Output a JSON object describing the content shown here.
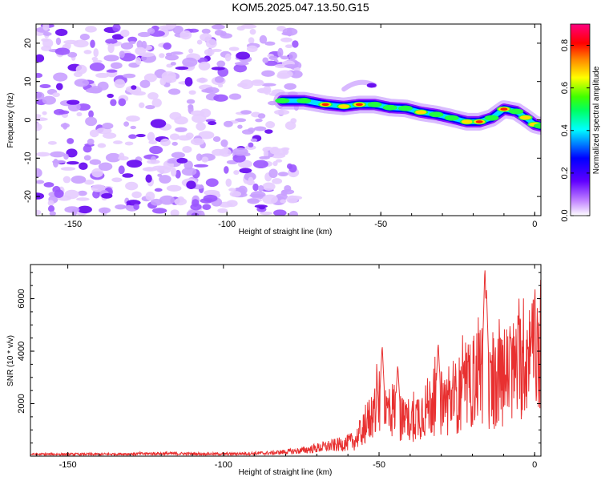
{
  "figure": {
    "title": "KOM5.2025.047.13.50.G15"
  },
  "chart_data": [
    {
      "type": "heatmap",
      "name": "spectrogram",
      "xlabel": "Height of straight line (km)",
      "ylabel": "Frequency (Hz)",
      "xlim": [
        -162,
        2
      ],
      "ylim": [
        -25,
        25
      ],
      "x_ticks": [
        -150,
        -100,
        -50,
        0
      ],
      "y_ticks": [
        -20,
        -10,
        0,
        10,
        20
      ],
      "colorbar": {
        "label": "Normalized spectral amplitude",
        "range": [
          0,
          0.9
        ],
        "ticks": [
          0.0,
          0.2,
          0.4,
          0.6,
          0.8
        ],
        "colormap": [
          "#ffffff",
          "#8000ff",
          "#0000ff",
          "#00ffff",
          "#00ff00",
          "#ffff00",
          "#ff0000",
          "#ff0080"
        ]
      },
      "noise_region_x": [
        -162,
        -80
      ],
      "signal_track": {
        "x": [
          -82,
          -75,
          -68,
          -62,
          -57,
          -52,
          -47,
          -42,
          -37,
          -32,
          -27,
          -22,
          -18,
          -14,
          -10,
          -6,
          -3,
          0,
          2
        ],
        "freq": [
          5,
          5,
          4,
          3.5,
          4,
          4,
          3.2,
          3,
          2,
          1.4,
          0.5,
          -0.5,
          -0.5,
          0.5,
          2.8,
          2.2,
          0.6,
          -1.2,
          -1.6
        ],
        "amplitude": [
          0.5,
          0.55,
          0.78,
          0.7,
          0.72,
          0.45,
          0.6,
          0.55,
          0.62,
          0.6,
          0.58,
          0.65,
          0.8,
          0.6,
          0.82,
          0.55,
          0.7,
          0.65,
          0.6
        ]
      }
    },
    {
      "type": "line",
      "name": "snr",
      "xlabel": "Height of straight line (km)",
      "ylabel": "SNR (10 * v/v)",
      "xlim": [
        -162,
        2
      ],
      "ylim": [
        0,
        7300
      ],
      "x_ticks": [
        -150,
        -100,
        -50,
        0
      ],
      "y_ticks": [
        2000,
        4000,
        6000
      ],
      "color": "#e83030",
      "envelope": {
        "x": [
          -162,
          -140,
          -120,
          -100,
          -85,
          -75,
          -68,
          -62,
          -58,
          -55,
          -52,
          -50,
          -48,
          -45,
          -42,
          -38,
          -35,
          -32,
          -28,
          -25,
          -22,
          -20,
          -18,
          -16,
          -14,
          -12,
          -10,
          -8,
          -6,
          -4,
          -2,
          0,
          2
        ],
        "y": [
          80,
          80,
          110,
          90,
          130,
          230,
          380,
          500,
          600,
          1100,
          1700,
          2200,
          1800,
          1900,
          1400,
          1600,
          1900,
          2200,
          2100,
          2400,
          2700,
          2900,
          3600,
          3300,
          2700,
          2900,
          3200,
          3300,
          3500,
          3800,
          4100,
          4200,
          3900
        ]
      },
      "spikes": {
        "x": [
          -49,
          -44,
          -31,
          -23,
          -16,
          -15.5,
          -1
        ],
        "y": [
          4250,
          3500,
          4350,
          3200,
          7250,
          6400,
          4700
        ]
      }
    }
  ]
}
